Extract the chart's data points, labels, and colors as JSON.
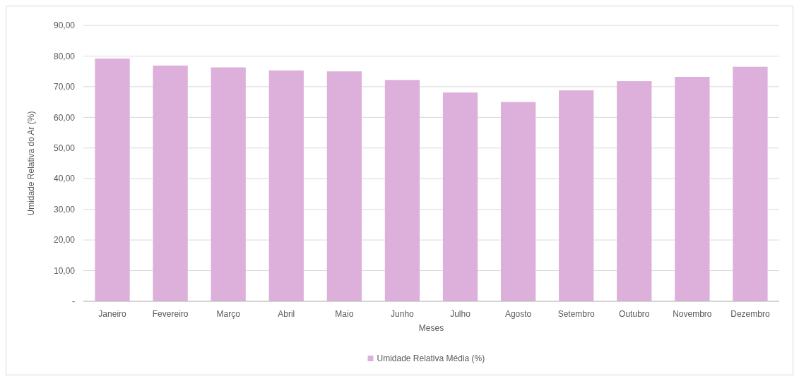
{
  "chart_data": {
    "type": "bar",
    "xlabel": "Meses",
    "ylabel": "Umidade Relativa do Ar (%)",
    "categories": [
      "Janeiro",
      "Fevereiro",
      "Março",
      "Abril",
      "Maio",
      "Junho",
      "Julho",
      "Agosto",
      "Setembro",
      "Outubro",
      "Novembro",
      "Dezembro"
    ],
    "series": [
      {
        "name": "Umidade Relativa Média (%)",
        "color": "#dcb0da",
        "values": [
          79.2,
          76.9,
          76.3,
          75.3,
          75.0,
          72.2,
          68.1,
          65.0,
          68.8,
          71.8,
          73.2,
          76.5
        ]
      }
    ],
    "ylim": [
      0,
      90
    ],
    "yticks": [
      {
        "value": 0,
        "label": "-"
      },
      {
        "value": 10,
        "label": "10,00"
      },
      {
        "value": 20,
        "label": "20,00"
      },
      {
        "value": 30,
        "label": "30,00"
      },
      {
        "value": 40,
        "label": "40,00"
      },
      {
        "value": 50,
        "label": "50,00"
      },
      {
        "value": 60,
        "label": "60,00"
      },
      {
        "value": 70,
        "label": "70,00"
      },
      {
        "value": 80,
        "label": "80,00"
      },
      {
        "value": 90,
        "label": "90,00"
      }
    ],
    "grid": "y",
    "legend": "bottom"
  }
}
